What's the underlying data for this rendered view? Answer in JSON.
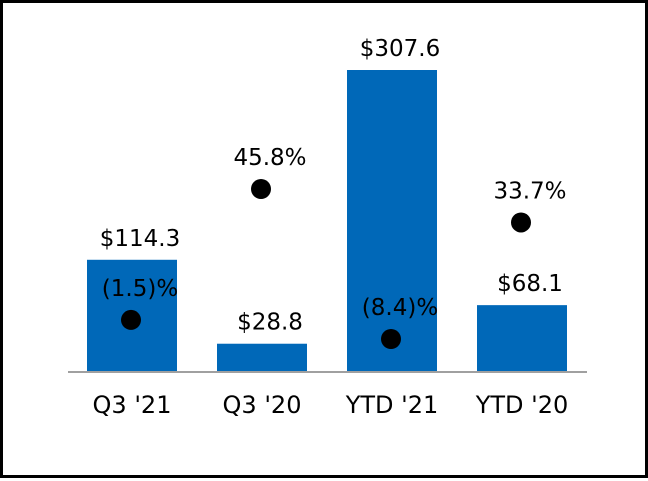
{
  "chart_data": {
    "type": "bar",
    "title": "",
    "xlabel": "",
    "ylabel": "",
    "ylim": [
      0,
      307.6
    ],
    "categories": [
      "Q3 '21",
      "Q3 '20",
      "YTD '21",
      "YTD '20"
    ],
    "series": [
      {
        "name": "Amount",
        "values": [
          114.3,
          28.8,
          307.6,
          68.1
        ],
        "labels": [
          "$114.3",
          "$28.8",
          "$307.6",
          "$68.1"
        ],
        "color": "#0068b8"
      },
      {
        "name": "Change",
        "type": "scatter",
        "values": [
          -1.5,
          45.8,
          -8.4,
          33.7
        ],
        "labels": [
          "(1.5)%",
          "45.8%",
          "(8.4)%",
          "33.7%"
        ],
        "color": "#000000"
      }
    ],
    "baseline_color": "#a0a0a0"
  }
}
